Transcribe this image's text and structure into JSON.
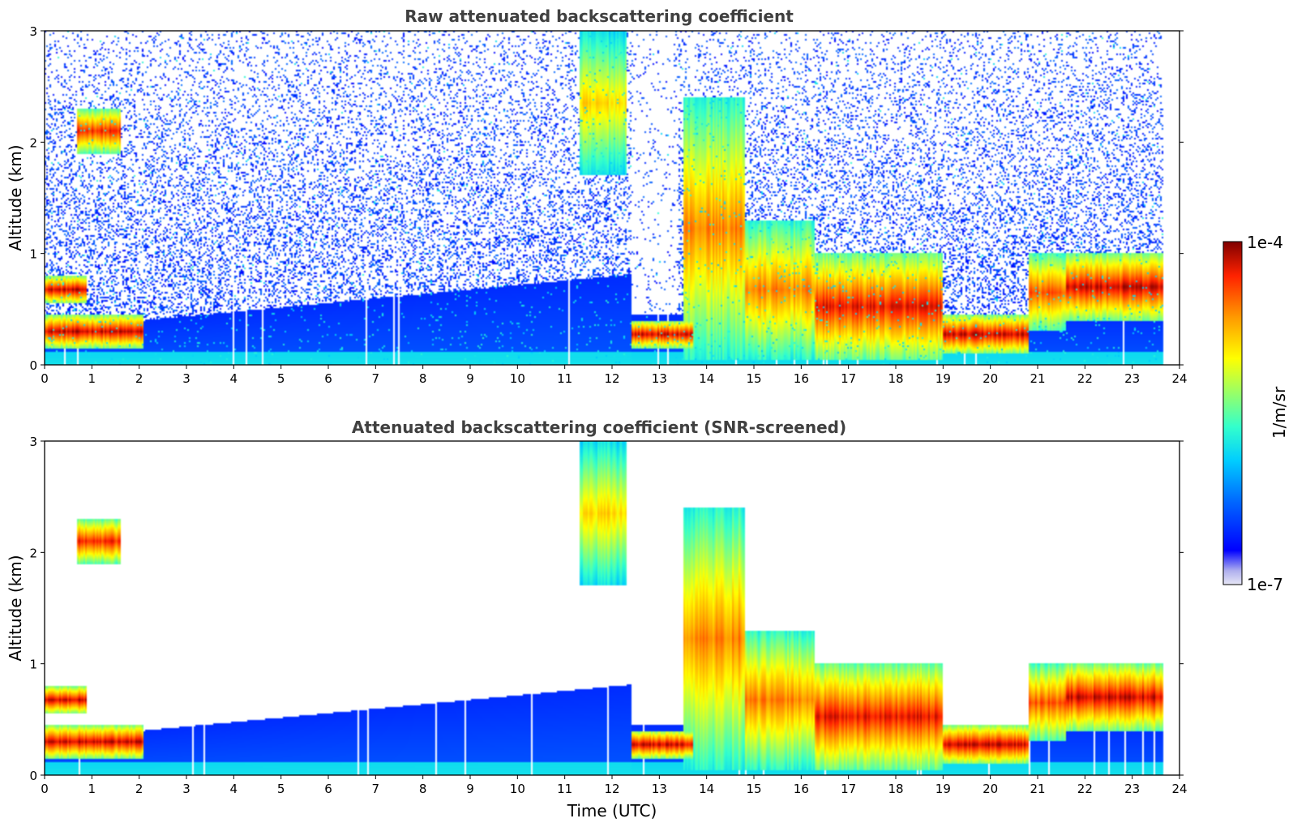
{
  "chart_data": [
    {
      "type": "heatmap",
      "title": "Raw attenuated backscattering coefficient",
      "xlabel": "",
      "ylabel": "Altitude (km)",
      "xlim": [
        0,
        24
      ],
      "ylim": [
        0,
        3
      ],
      "xticks": [
        "0",
        "1",
        "2",
        "3",
        "4",
        "5",
        "6",
        "7",
        "8",
        "9",
        "10",
        "11",
        "12",
        "13",
        "14",
        "15",
        "16",
        "17",
        "18",
        "19",
        "20",
        "21",
        "22",
        "23",
        "24"
      ],
      "yticks": [
        "0",
        "1",
        "2",
        "3"
      ],
      "screened": false
    },
    {
      "type": "heatmap",
      "title": "Attenuated backscattering coefficient (SNR-screened)",
      "xlabel": "Time (UTC)",
      "ylabel": "Altitude (km)",
      "xlim": [
        0,
        24
      ],
      "ylim": [
        0,
        3
      ],
      "xticks": [
        "0",
        "1",
        "2",
        "3",
        "4",
        "5",
        "6",
        "7",
        "8",
        "9",
        "10",
        "11",
        "12",
        "13",
        "14",
        "15",
        "16",
        "17",
        "18",
        "19",
        "20",
        "21",
        "22",
        "23",
        "24"
      ],
      "yticks": [
        "0",
        "1",
        "2",
        "3"
      ],
      "screened": true
    }
  ],
  "colorbar": {
    "label": "1/m/sr",
    "min_label": "1e-7",
    "max_label": "1e-4",
    "scale": "log",
    "colormap": "jet"
  },
  "data_end_time_utc": 23.65,
  "layers": [
    {
      "t0": 0.0,
      "t1": 2.1,
      "h0": 0.15,
      "h1": 0.45,
      "intensity": 0.95
    },
    {
      "t0": 0.0,
      "t1": 0.9,
      "h0": 0.55,
      "h1": 0.8,
      "intensity": 0.95
    },
    {
      "t0": 0.7,
      "t1": 1.6,
      "h0": 1.9,
      "h1": 2.3,
      "intensity": 0.9
    },
    {
      "t0": 11.3,
      "t1": 12.3,
      "h0": 1.7,
      "h1": 3.0,
      "intensity": 0.7
    },
    {
      "t0": 12.4,
      "t1": 13.7,
      "h0": 0.15,
      "h1": 0.4,
      "intensity": 0.95
    },
    {
      "t0": 13.5,
      "t1": 14.8,
      "h0": 0.05,
      "h1": 2.4,
      "intensity": 0.8
    },
    {
      "t0": 14.8,
      "t1": 16.3,
      "h0": 0.05,
      "h1": 1.3,
      "intensity": 0.8
    },
    {
      "t0": 16.3,
      "t1": 19.0,
      "h0": 0.05,
      "h1": 1.0,
      "intensity": 0.92
    },
    {
      "t0": 19.0,
      "t1": 20.8,
      "h0": 0.1,
      "h1": 0.45,
      "intensity": 0.95
    },
    {
      "t0": 20.8,
      "t1": 21.6,
      "h0": 0.3,
      "h1": 1.0,
      "intensity": 0.85
    },
    {
      "t0": 21.6,
      "t1": 23.65,
      "h0": 0.4,
      "h1": 1.0,
      "intensity": 0.95
    }
  ]
}
